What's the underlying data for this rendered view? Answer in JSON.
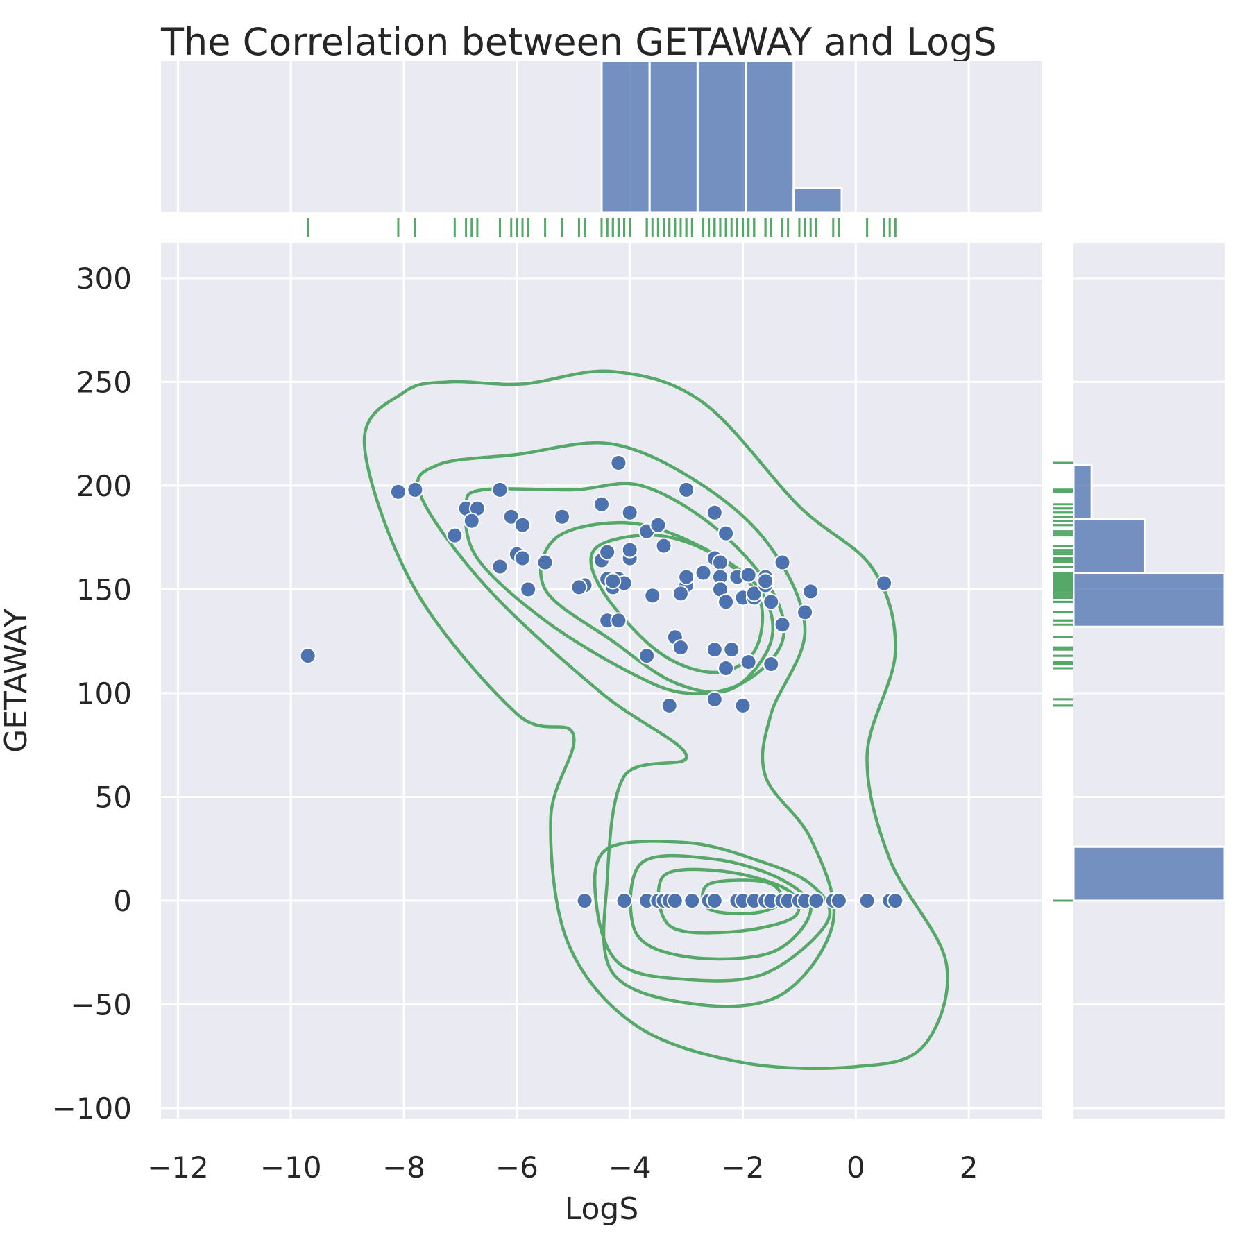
{
  "chart_data": {
    "type": "scatter",
    "title": "The Correlation between GETAWAY and LogS",
    "xlabel": "LogS",
    "ylabel": "GETAWAY",
    "xlim": [
      -12.3,
      3.3
    ],
    "ylim": [
      -105,
      317
    ],
    "grid": true,
    "x_ticks": [
      -12,
      -10,
      -8,
      -6,
      -4,
      -2,
      0,
      2
    ],
    "x_tick_labels": [
      "−12",
      "−10",
      "−8",
      "−6",
      "−4",
      "−2",
      "0",
      "2"
    ],
    "y_ticks": [
      -100,
      -50,
      0,
      50,
      100,
      150,
      200,
      250,
      300
    ],
    "y_tick_labels": [
      "−100",
      "−50",
      "0",
      "50",
      "100",
      "150",
      "200",
      "250",
      "300"
    ],
    "colors": {
      "points": "#4c72b0",
      "histogram": "#4c72b0",
      "kde": "#55a868",
      "rug": "#55a868",
      "background": "#eaeaf2",
      "grid": "#ffffff"
    },
    "points": [
      {
        "x": -9.7,
        "y": 118
      },
      {
        "x": -8.1,
        "y": 197
      },
      {
        "x": -7.8,
        "y": 198
      },
      {
        "x": -7.1,
        "y": 176
      },
      {
        "x": -6.9,
        "y": 189
      },
      {
        "x": -6.7,
        "y": 189
      },
      {
        "x": -6.8,
        "y": 183
      },
      {
        "x": -6.3,
        "y": 198
      },
      {
        "x": -6.1,
        "y": 185
      },
      {
        "x": -5.9,
        "y": 181
      },
      {
        "x": -6.0,
        "y": 167
      },
      {
        "x": -5.9,
        "y": 165
      },
      {
        "x": -6.3,
        "y": 161
      },
      {
        "x": -5.8,
        "y": 150
      },
      {
        "x": -5.5,
        "y": 163
      },
      {
        "x": -5.2,
        "y": 185
      },
      {
        "x": -4.8,
        "y": 152
      },
      {
        "x": -4.9,
        "y": 151
      },
      {
        "x": -4.5,
        "y": 164
      },
      {
        "x": -4.4,
        "y": 168
      },
      {
        "x": -4.5,
        "y": 191
      },
      {
        "x": -4.0,
        "y": 187
      },
      {
        "x": -4.2,
        "y": 211
      },
      {
        "x": -4.4,
        "y": 155
      },
      {
        "x": -4.3,
        "y": 151
      },
      {
        "x": -4.2,
        "y": 155
      },
      {
        "x": -4.1,
        "y": 153
      },
      {
        "x": -4.3,
        "y": 154
      },
      {
        "x": -4.0,
        "y": 165
      },
      {
        "x": -4.0,
        "y": 169
      },
      {
        "x": -4.4,
        "y": 135
      },
      {
        "x": -4.2,
        "y": 135
      },
      {
        "x": -3.7,
        "y": 118
      },
      {
        "x": -3.7,
        "y": 178
      },
      {
        "x": -3.5,
        "y": 181
      },
      {
        "x": -3.4,
        "y": 171
      },
      {
        "x": -3.6,
        "y": 147
      },
      {
        "x": -3.0,
        "y": 198
      },
      {
        "x": -3.2,
        "y": 127
      },
      {
        "x": -3.1,
        "y": 122
      },
      {
        "x": -3.3,
        "y": 94
      },
      {
        "x": -3.0,
        "y": 152
      },
      {
        "x": -3.1,
        "y": 148
      },
      {
        "x": -3.0,
        "y": 156
      },
      {
        "x": -2.7,
        "y": 158
      },
      {
        "x": -2.5,
        "y": 187
      },
      {
        "x": -2.5,
        "y": 165
      },
      {
        "x": -2.4,
        "y": 163
      },
      {
        "x": -2.4,
        "y": 156
      },
      {
        "x": -2.4,
        "y": 150
      },
      {
        "x": -2.3,
        "y": 144
      },
      {
        "x": -2.3,
        "y": 177
      },
      {
        "x": -2.5,
        "y": 121
      },
      {
        "x": -2.3,
        "y": 112
      },
      {
        "x": -2.2,
        "y": 121
      },
      {
        "x": -2.5,
        "y": 97
      },
      {
        "x": -2.0,
        "y": 94
      },
      {
        "x": -2.1,
        "y": 156
      },
      {
        "x": -2.1,
        "y": 156
      },
      {
        "x": -2.0,
        "y": 146
      },
      {
        "x": -1.9,
        "y": 157
      },
      {
        "x": -1.8,
        "y": 146
      },
      {
        "x": -1.8,
        "y": 148
      },
      {
        "x": -1.9,
        "y": 115
      },
      {
        "x": -1.6,
        "y": 156
      },
      {
        "x": -1.6,
        "y": 152
      },
      {
        "x": -1.6,
        "y": 154
      },
      {
        "x": -1.5,
        "y": 144
      },
      {
        "x": -1.5,
        "y": 114
      },
      {
        "x": -1.3,
        "y": 133
      },
      {
        "x": -1.3,
        "y": 163
      },
      {
        "x": -0.8,
        "y": 149
      },
      {
        "x": -0.9,
        "y": 139
      },
      {
        "x": 0.5,
        "y": 153
      },
      {
        "x": -4.8,
        "y": 0
      },
      {
        "x": -4.1,
        "y": 0
      },
      {
        "x": -3.7,
        "y": 0
      },
      {
        "x": -3.5,
        "y": 0
      },
      {
        "x": -3.4,
        "y": 0
      },
      {
        "x": -3.3,
        "y": 0
      },
      {
        "x": -3.2,
        "y": 0
      },
      {
        "x": -2.9,
        "y": 0
      },
      {
        "x": -2.6,
        "y": 0
      },
      {
        "x": -2.5,
        "y": 0
      },
      {
        "x": -2.1,
        "y": 0
      },
      {
        "x": -2.0,
        "y": 0
      },
      {
        "x": -1.8,
        "y": 0
      },
      {
        "x": -1.6,
        "y": 0
      },
      {
        "x": -1.5,
        "y": 0
      },
      {
        "x": -1.3,
        "y": 0
      },
      {
        "x": -1.2,
        "y": 0
      },
      {
        "x": -1.0,
        "y": 0
      },
      {
        "x": -0.9,
        "y": 0
      },
      {
        "x": -0.7,
        "y": 0
      },
      {
        "x": -0.4,
        "y": 0
      },
      {
        "x": -0.3,
        "y": 0
      },
      {
        "x": 0.2,
        "y": 0
      },
      {
        "x": 0.6,
        "y": 0
      },
      {
        "x": 0.7,
        "y": 0
      }
    ],
    "x_histogram": {
      "bins": [
        [
          -4.5,
          -3.65
        ],
        [
          -3.65,
          -2.8
        ],
        [
          -2.8,
          -1.95
        ],
        [
          -1.95,
          -1.1
        ],
        [
          -1.1,
          -0.25
        ]
      ],
      "heights": [
        1.0,
        1.0,
        1.0,
        1.0,
        0.16
      ]
    },
    "y_histogram": {
      "bins": [
        [
          0,
          26
        ],
        [
          132,
          158
        ],
        [
          158,
          184
        ],
        [
          184,
          210
        ]
      ],
      "widths": [
        1.0,
        1.0,
        0.47,
        0.12
      ]
    },
    "kde_contours": [
      [
        [
          -7.2,
          250
        ],
        [
          -5.9,
          249
        ],
        [
          -4.3,
          255
        ],
        [
          -2.7,
          240
        ],
        [
          -1.0,
          190
        ],
        [
          0.3,
          160
        ],
        [
          0.7,
          120
        ],
        [
          0.2,
          70
        ],
        [
          0.6,
          20
        ],
        [
          1.6,
          -30
        ],
        [
          1.2,
          -70
        ],
        [
          0.0,
          -80
        ],
        [
          -2.0,
          -78
        ],
        [
          -3.9,
          -60
        ],
        [
          -5.1,
          -20
        ],
        [
          -5.4,
          40
        ],
        [
          -5.0,
          80
        ],
        [
          -6.0,
          90
        ],
        [
          -7.8,
          150
        ],
        [
          -8.7,
          220
        ],
        [
          -8.0,
          245
        ]
      ],
      [
        [
          -7.4,
          210
        ],
        [
          -6.0,
          215
        ],
        [
          -4.3,
          220
        ],
        [
          -2.7,
          200
        ],
        [
          -1.5,
          170
        ],
        [
          -0.9,
          130
        ],
        [
          -1.5,
          90
        ],
        [
          -1.6,
          60
        ],
        [
          -0.8,
          30
        ],
        [
          -0.4,
          -10
        ],
        [
          -1.3,
          -45
        ],
        [
          -2.8,
          -50
        ],
        [
          -4.3,
          -35
        ],
        [
          -4.4,
          10
        ],
        [
          -4.1,
          60
        ],
        [
          -3.0,
          70
        ],
        [
          -4.5,
          100
        ],
        [
          -6.5,
          150
        ],
        [
          -7.7,
          195
        ]
      ],
      [
        [
          -6.6,
          198
        ],
        [
          -5.0,
          198
        ],
        [
          -3.8,
          200
        ],
        [
          -2.5,
          180
        ],
        [
          -1.5,
          150
        ],
        [
          -1.3,
          125
        ],
        [
          -2.0,
          105
        ],
        [
          -3.0,
          100
        ],
        [
          -4.0,
          110
        ],
        [
          -5.5,
          135
        ],
        [
          -6.7,
          165
        ],
        [
          -6.9,
          190
        ]
      ],
      [
        [
          -5.3,
          175
        ],
        [
          -4.0,
          182
        ],
        [
          -2.7,
          170
        ],
        [
          -1.7,
          150
        ],
        [
          -1.5,
          125
        ],
        [
          -2.2,
          102
        ],
        [
          -3.2,
          105
        ],
        [
          -4.3,
          125
        ],
        [
          -5.5,
          150
        ]
      ],
      [
        [
          -4.6,
          170
        ],
        [
          -3.5,
          176
        ],
        [
          -2.4,
          165
        ],
        [
          -1.7,
          145
        ],
        [
          -1.8,
          120
        ],
        [
          -2.5,
          110
        ],
        [
          -3.5,
          120
        ],
        [
          -4.5,
          150
        ]
      ],
      [
        [
          -4.4,
          25
        ],
        [
          -3.0,
          28
        ],
        [
          -1.8,
          20
        ],
        [
          -0.8,
          8
        ],
        [
          -0.5,
          -10
        ],
        [
          -1.6,
          -35
        ],
        [
          -3.0,
          -38
        ],
        [
          -4.2,
          -30
        ],
        [
          -4.6,
          0
        ]
      ],
      [
        [
          -3.8,
          18
        ],
        [
          -2.5,
          20
        ],
        [
          -1.3,
          10
        ],
        [
          -0.8,
          -5
        ],
        [
          -1.5,
          -25
        ],
        [
          -3.0,
          -27
        ],
        [
          -3.9,
          -15
        ]
      ],
      [
        [
          -3.4,
          12
        ],
        [
          -2.3,
          14
        ],
        [
          -1.2,
          5
        ],
        [
          -1.1,
          -8
        ],
        [
          -2.2,
          -15
        ],
        [
          -3.3,
          -12
        ]
      ],
      [
        [
          -2.6,
          8
        ],
        [
          -1.6,
          9
        ],
        [
          -1.3,
          0
        ],
        [
          -1.8,
          -6
        ],
        [
          -2.6,
          -4
        ]
      ]
    ]
  }
}
